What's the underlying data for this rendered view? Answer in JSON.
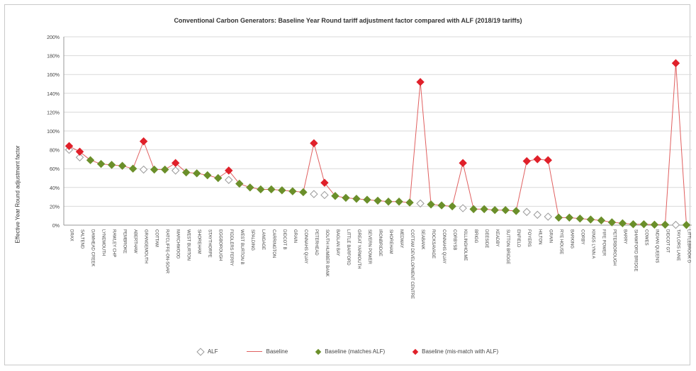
{
  "chart_data": {
    "type": "line",
    "title": "Conventional Carbon Generators: Baseline Year Round tariff adjustment factor compared with ALF (2018/19 tariffs)",
    "ylabel": "Effective Year Round adjustment factor",
    "xlabel": "",
    "ylim": [
      0,
      200
    ],
    "yticks": [
      "0%",
      "20%",
      "40%",
      "60%",
      "80%",
      "100%",
      "120%",
      "140%",
      "160%",
      "180%",
      "200%"
    ],
    "categories": [
      "DRAX",
      "SALTEND",
      "DAMHEAD CREEK",
      "LYNEMOUTH",
      "RAWLEY CHP",
      "PEMBROKE",
      "ABERTHAW",
      "GRANGEMOUTH",
      "COTTAM",
      "RATCLIFFE-ON-SOAR",
      "MARCHWOOD",
      "WEST BURTON",
      "SHOREHAM",
      "STAYTHORPE",
      "EGGBOROUGH",
      "FIDDLERS FERRY",
      "WEST BURTON B",
      "SPALDING",
      "LANGAGE",
      "CARRINGTON",
      "DIDCOT B",
      "GRAIN",
      "CONNAHS QUAY",
      "PETERHEAD",
      "SOUTH HUMBER BANK",
      "BAGLAN BAY",
      "LITTLE BARFORD",
      "GREAT YARMOUTH",
      "SEVERN POWER",
      "IRONBRIDGE",
      "SHOREHAM",
      "MEDWAY",
      "COTTAM DEVELOPMENT CENTRE",
      "SEABANK",
      "ROCKSAVAGE",
      "CONNAHS QUAY",
      "CORBYSB",
      "KILLINGHOLME",
      "BRIGG",
      "DEESIDE",
      "KEADBY",
      "SUTTON BRIDGE",
      "ENFIELD",
      "FOYERS",
      "HILTON",
      "GRAIN",
      "RYE HOUSE",
      "BARKING",
      "CORBY",
      "KINGS LYNN A",
      "FIFE POWER",
      "PETERBOROUGH",
      "BARRY",
      "SHAWFORD BRIDGE",
      "COWES",
      "INDIAN QUEENS",
      "DIDCOT GT",
      "TAYLORS LANE",
      "LITTLEBROOK D"
    ],
    "series": [
      {
        "name": "ALF",
        "values": [
          80,
          72,
          69,
          65,
          64,
          63,
          60,
          59,
          59,
          59,
          58,
          56,
          55,
          53,
          50,
          48,
          44,
          40,
          38,
          38,
          37,
          36,
          35,
          33,
          32,
          31,
          29,
          28,
          27,
          26,
          25,
          25,
          24,
          23,
          22,
          21,
          20,
          18,
          17,
          17,
          16,
          16,
          15,
          14,
          11,
          9,
          8,
          8,
          7,
          6,
          5,
          3,
          2,
          1,
          1,
          0.5,
          0.5,
          0.3,
          0.2
        ]
      },
      {
        "name": "Baseline",
        "values": [
          84,
          78,
          69,
          65,
          64,
          63,
          60,
          89,
          59,
          59,
          66,
          56,
          55,
          53,
          50,
          58,
          44,
          40,
          38,
          38,
          37,
          36,
          35,
          87,
          45,
          31,
          29,
          28,
          27,
          26,
          25,
          25,
          24,
          152,
          22,
          21,
          20,
          66,
          17,
          17,
          16,
          16,
          15,
          68,
          70,
          69,
          8,
          8,
          7,
          6,
          5,
          3,
          2,
          1,
          1,
          0.5,
          0.5,
          172,
          0.2
        ]
      },
      {
        "name": "Baseline (matches ALF)"
      },
      {
        "name": "Baseline (mis-match with ALF)",
        "indices": [
          0,
          1,
          7,
          10,
          15,
          23,
          24,
          33,
          37,
          43,
          44,
          45,
          57
        ]
      }
    ],
    "colors": {
      "alf": "#9a9a9a",
      "baseline": "#e06060",
      "match": "#6b8f2a",
      "mismatch": "#e0202a",
      "grid": "#d9d9d9"
    },
    "legend_position": "bottom",
    "grid": true
  },
  "legend": {
    "alf": "ALF",
    "baseline": "Baseline",
    "match": "Baseline (matches ALF)",
    "mismatch": "Baseline (mis-match with ALF)"
  }
}
